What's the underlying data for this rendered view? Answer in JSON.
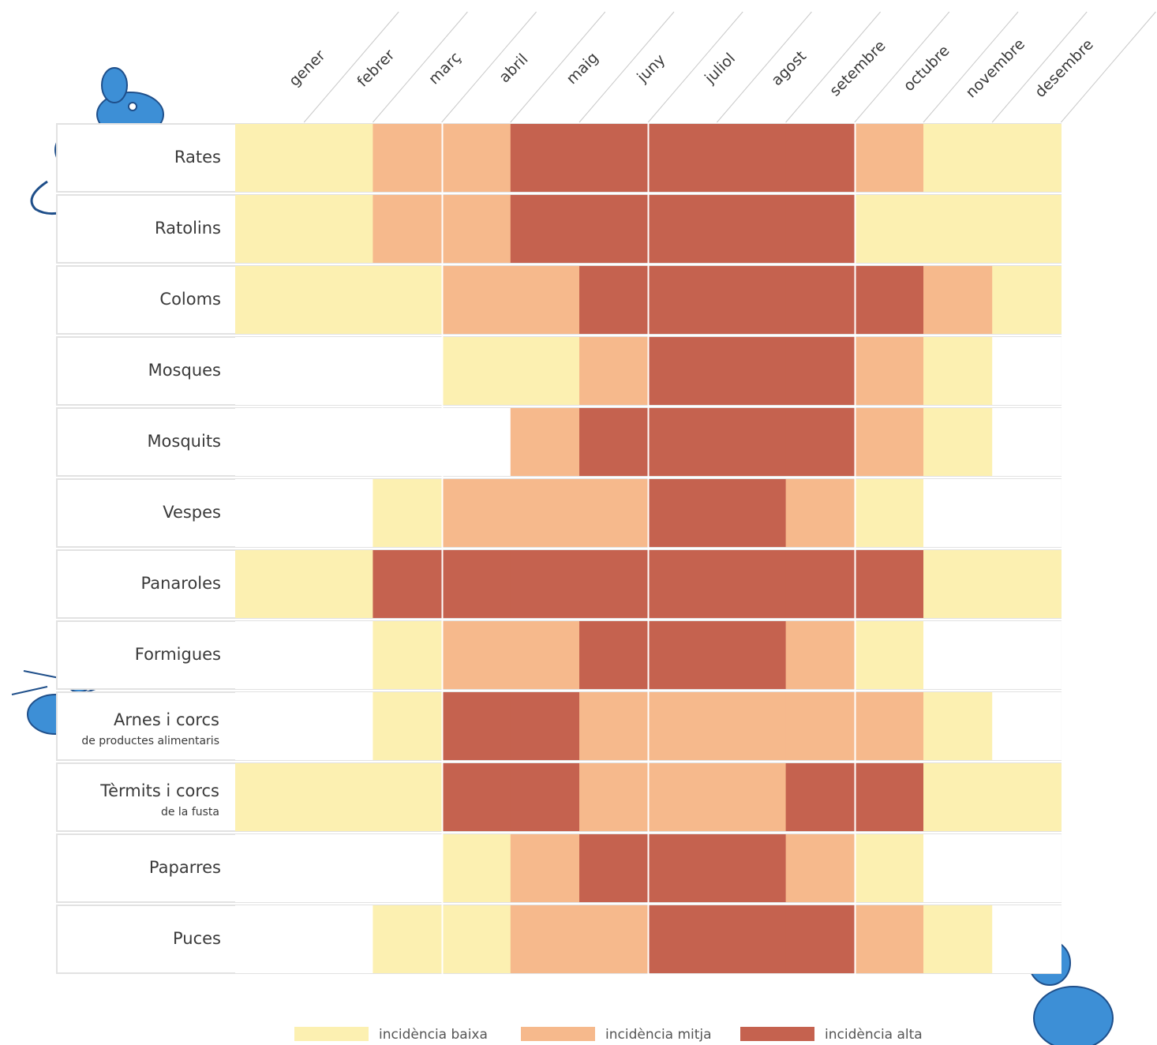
{
  "chart_data": {
    "type": "heatmap",
    "months": [
      "gener",
      "febrer",
      "març",
      "abril",
      "maig",
      "juny",
      "juliol",
      "agost",
      "setembre",
      "octubre",
      "novembre",
      "desembre"
    ],
    "levels": [
      {
        "value": 1,
        "name": "incidència baixa",
        "color": "#fcf0b1"
      },
      {
        "value": 2,
        "name": "incidència mitja",
        "color": "#f6b98c"
      },
      {
        "value": 3,
        "name": "incidència alta",
        "color": "#c5624f"
      }
    ],
    "rows": [
      {
        "label": "Rates",
        "values": [
          1,
          1,
          2,
          2,
          3,
          3,
          3,
          3,
          3,
          2,
          1,
          1
        ]
      },
      {
        "label": "Ratolins",
        "values": [
          1,
          1,
          2,
          2,
          3,
          3,
          3,
          3,
          3,
          1,
          1,
          1
        ]
      },
      {
        "label": "Coloms",
        "values": [
          1,
          1,
          1,
          2,
          2,
          3,
          3,
          3,
          3,
          3,
          2,
          1
        ]
      },
      {
        "label": "Mosques",
        "values": [
          0,
          0,
          0,
          1,
          1,
          2,
          3,
          3,
          3,
          2,
          1,
          0
        ]
      },
      {
        "label": "Mosquits",
        "values": [
          0,
          0,
          0,
          0,
          2,
          3,
          3,
          3,
          3,
          2,
          1,
          0
        ]
      },
      {
        "label": "Vespes",
        "values": [
          0,
          0,
          1,
          2,
          2,
          2,
          3,
          3,
          2,
          1,
          0,
          0
        ]
      },
      {
        "label": "Panaroles",
        "values": [
          1,
          1,
          3,
          3,
          3,
          3,
          3,
          3,
          3,
          3,
          1,
          1
        ]
      },
      {
        "label": "Formigues",
        "values": [
          0,
          0,
          1,
          2,
          2,
          3,
          3,
          3,
          2,
          1,
          0,
          0
        ]
      },
      {
        "label": "Arnes i corcs",
        "note": "de productes alimentaris",
        "values": [
          0,
          0,
          1,
          3,
          3,
          2,
          2,
          2,
          2,
          2,
          1,
          0
        ]
      },
      {
        "label": "Tèrmits i corcs",
        "note": "de la fusta",
        "values": [
          1,
          1,
          1,
          3,
          3,
          2,
          2,
          2,
          3,
          3,
          1,
          1
        ]
      },
      {
        "label": "Paparres",
        "values": [
          0,
          0,
          0,
          1,
          2,
          3,
          3,
          3,
          2,
          1,
          0,
          0
        ]
      },
      {
        "label": "Puces",
        "values": [
          0,
          0,
          1,
          1,
          2,
          2,
          3,
          3,
          3,
          2,
          1,
          0
        ]
      }
    ]
  }
}
